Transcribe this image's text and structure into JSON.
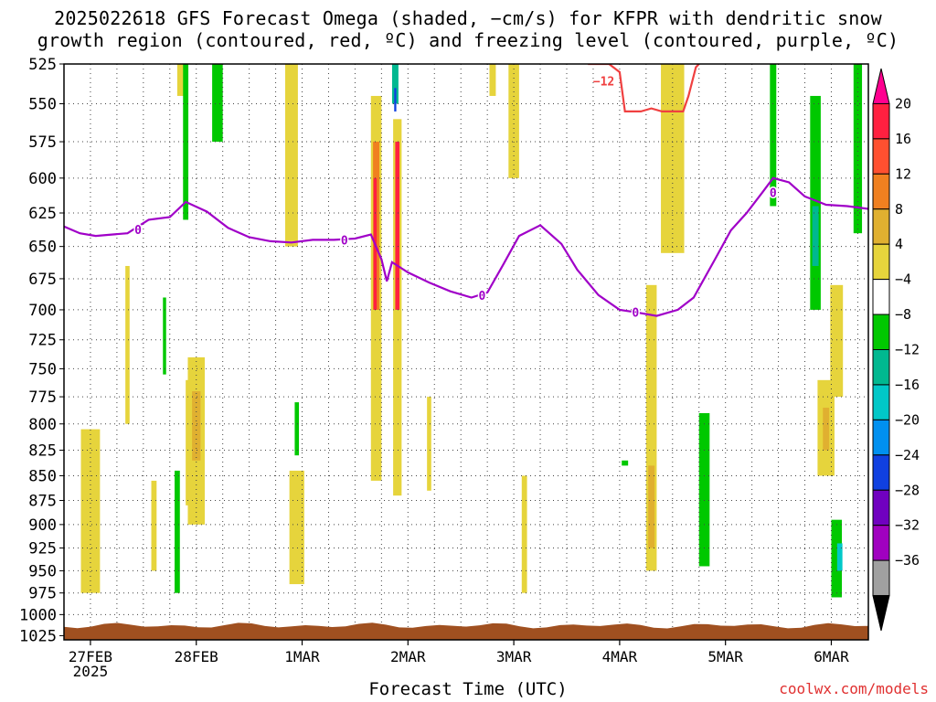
{
  "chart_data": {
    "type": "heatmap",
    "title_line1": "2025022618 GFS Forecast Omega (shaded, −cm/s) for KFPR with dendritic snow",
    "title_line2": "growth region (contoured, red, ºC) and freezing level (contoured, purple, ºC)",
    "xlabel": "Forecast Time (UTC)",
    "credit": "coolwx.com/models",
    "y_axis": {
      "label": "",
      "ticks": [
        525,
        550,
        575,
        600,
        625,
        650,
        675,
        700,
        725,
        750,
        775,
        800,
        825,
        850,
        875,
        900,
        925,
        950,
        975,
        1000,
        1025
      ],
      "range": [
        525,
        1025
      ],
      "scale": "log-pressure"
    },
    "x_axis": {
      "ticks": [
        {
          "day": 0,
          "label": "27FEB",
          "sub": "2025"
        },
        {
          "day": 1,
          "label": "28FEB",
          "sub": ""
        },
        {
          "day": 2,
          "label": "1MAR",
          "sub": ""
        },
        {
          "day": 3,
          "label": "2MAR",
          "sub": ""
        },
        {
          "day": 4,
          "label": "3MAR",
          "sub": ""
        },
        {
          "day": 5,
          "label": "4MAR",
          "sub": ""
        },
        {
          "day": 6,
          "label": "5MAR",
          "sub": ""
        },
        {
          "day": 7,
          "label": "6MAR",
          "sub": ""
        }
      ],
      "range_days": [
        -0.25,
        7.35
      ],
      "grid": true
    },
    "colorbar": {
      "labels": [
        "20",
        "16",
        "12",
        "8",
        "4",
        "−4",
        "−8",
        "−12",
        "−16",
        "−20",
        "−24",
        "−28",
        "−32",
        "−36"
      ],
      "levels": [
        {
          "color": "#ff0090",
          "label": "top"
        },
        {
          "color": "#ff2040"
        },
        {
          "color": "#ff5030"
        },
        {
          "color": "#f08020"
        },
        {
          "color": "#e0b030"
        },
        {
          "color": "#e6d43c"
        },
        {
          "color": "#ffffff"
        },
        {
          "color": "#00c800"
        },
        {
          "color": "#00b890"
        },
        {
          "color": "#00c8c8"
        },
        {
          "color": "#0090f0"
        },
        {
          "color": "#1040e0"
        },
        {
          "color": "#7000c0"
        },
        {
          "color": "#a000c0"
        },
        {
          "color": "#a0a0a0"
        },
        {
          "color": "#000000"
        }
      ]
    },
    "freezing_level_0C": {
      "label": "0",
      "color": "#a000c8",
      "points": [
        [
          -0.25,
          635
        ],
        [
          -0.1,
          640
        ],
        [
          0.05,
          642
        ],
        [
          0.2,
          641
        ],
        [
          0.35,
          640
        ],
        [
          0.55,
          630
        ],
        [
          0.75,
          628
        ],
        [
          0.9,
          617
        ],
        [
          1.1,
          624
        ],
        [
          1.3,
          636
        ],
        [
          1.5,
          643
        ],
        [
          1.7,
          646
        ],
        [
          1.9,
          647
        ],
        [
          2.1,
          645
        ],
        [
          2.3,
          645
        ],
        [
          2.5,
          644
        ],
        [
          2.65,
          641
        ],
        [
          2.75,
          660
        ],
        [
          2.8,
          677
        ],
        [
          2.85,
          662
        ],
        [
          3.0,
          670
        ],
        [
          3.2,
          678
        ],
        [
          3.4,
          685
        ],
        [
          3.6,
          690
        ],
        [
          3.75,
          686
        ],
        [
          3.9,
          664
        ],
        [
          4.05,
          642
        ],
        [
          4.25,
          634
        ],
        [
          4.45,
          648
        ],
        [
          4.6,
          668
        ],
        [
          4.8,
          688
        ],
        [
          5.0,
          700
        ],
        [
          5.15,
          702
        ],
        [
          5.35,
          705
        ],
        [
          5.55,
          700
        ],
        [
          5.7,
          690
        ],
        [
          5.9,
          660
        ],
        [
          6.05,
          638
        ],
        [
          6.2,
          625
        ],
        [
          6.35,
          610
        ],
        [
          6.45,
          600
        ],
        [
          6.6,
          603
        ],
        [
          6.75,
          613
        ],
        [
          6.95,
          619
        ],
        [
          7.15,
          620
        ],
        [
          7.35,
          622
        ]
      ]
    },
    "dendritic_minus12C": {
      "label": "−12",
      "color": "#f04040",
      "points": [
        [
          4.7,
          525
        ],
        [
          4.9,
          525
        ],
        [
          5.0,
          530
        ],
        [
          5.05,
          555
        ],
        [
          5.2,
          555
        ],
        [
          5.3,
          553
        ],
        [
          5.4,
          555
        ],
        [
          5.6,
          555
        ],
        [
          5.65,
          545
        ],
        [
          5.72,
          527
        ],
        [
          5.75,
          525
        ]
      ]
    },
    "omega_cells": [
      {
        "day": 0.0,
        "p_top": 805,
        "p_bot": 975,
        "w": 0.18,
        "color": "#e6d43c"
      },
      {
        "day": 0.35,
        "p_top": 665,
        "p_bot": 800,
        "w": 0.04,
        "color": "#e6d43c"
      },
      {
        "day": 0.6,
        "p_top": 855,
        "p_bot": 950,
        "w": 0.05,
        "color": "#e6d43c"
      },
      {
        "day": 0.85,
        "p_top": 525,
        "p_bot": 545,
        "w": 0.06,
        "color": "#e6d43c"
      },
      {
        "day": 0.95,
        "p_top": 760,
        "p_bot": 880,
        "w": 0.1,
        "color": "#e6d43c"
      },
      {
        "day": 1.0,
        "p_top": 740,
        "p_bot": 900,
        "w": 0.16,
        "color": "#e6d43c"
      },
      {
        "day": 1.0,
        "p_top": 770,
        "p_bot": 835,
        "w": 0.08,
        "color": "#e0b030"
      },
      {
        "day": 0.9,
        "p_top": 525,
        "p_bot": 630,
        "w": 0.05,
        "color": "#00c800"
      },
      {
        "day": 1.2,
        "p_top": 525,
        "p_bot": 575,
        "w": 0.1,
        "color": "#00c800"
      },
      {
        "day": 0.7,
        "p_top": 690,
        "p_bot": 755,
        "w": 0.03,
        "color": "#00c800"
      },
      {
        "day": 0.82,
        "p_top": 845,
        "p_bot": 975,
        "w": 0.05,
        "color": "#00c800"
      },
      {
        "day": 1.9,
        "p_top": 525,
        "p_bot": 650,
        "w": 0.12,
        "color": "#e6d43c"
      },
      {
        "day": 1.95,
        "p_top": 845,
        "p_bot": 965,
        "w": 0.14,
        "color": "#e6d43c"
      },
      {
        "day": 1.95,
        "p_top": 780,
        "p_bot": 830,
        "w": 0.04,
        "color": "#00c800"
      },
      {
        "day": 2.7,
        "p_top": 545,
        "p_bot": 855,
        "w": 0.1,
        "color": "#e6d43c"
      },
      {
        "day": 2.7,
        "p_top": 575,
        "p_bot": 700,
        "w": 0.06,
        "color": "#f08020"
      },
      {
        "day": 2.69,
        "p_top": 600,
        "p_bot": 700,
        "w": 0.03,
        "color": "#ff2040"
      },
      {
        "day": 2.9,
        "p_top": 560,
        "p_bot": 870,
        "w": 0.08,
        "color": "#e6d43c"
      },
      {
        "day": 2.9,
        "p_top": 575,
        "p_bot": 700,
        "w": 0.04,
        "color": "#ff2040"
      },
      {
        "day": 2.88,
        "p_top": 525,
        "p_bot": 550,
        "w": 0.06,
        "color": "#00b890"
      },
      {
        "day": 2.88,
        "p_top": 540,
        "p_bot": 555,
        "w": 0.02,
        "color": "#1040e0"
      },
      {
        "day": 3.2,
        "p_top": 775,
        "p_bot": 865,
        "w": 0.04,
        "color": "#e6d43c"
      },
      {
        "day": 3.8,
        "p_top": 525,
        "p_bot": 545,
        "w": 0.06,
        "color": "#e6d43c"
      },
      {
        "day": 4.0,
        "p_top": 525,
        "p_bot": 600,
        "w": 0.1,
        "color": "#e6d43c"
      },
      {
        "day": 4.1,
        "p_top": 850,
        "p_bot": 975,
        "w": 0.05,
        "color": "#e6d43c"
      },
      {
        "day": 5.3,
        "p_top": 680,
        "p_bot": 950,
        "w": 0.1,
        "color": "#e6d43c"
      },
      {
        "day": 5.3,
        "p_top": 840,
        "p_bot": 925,
        "w": 0.06,
        "color": "#e0b030"
      },
      {
        "day": 5.5,
        "p_top": 525,
        "p_bot": 655,
        "w": 0.22,
        "color": "#e6d43c"
      },
      {
        "day": 5.05,
        "p_top": 835,
        "p_bot": 840,
        "w": 0.06,
        "color": "#00c800"
      },
      {
        "day": 5.8,
        "p_top": 790,
        "p_bot": 945,
        "w": 0.1,
        "color": "#00c800"
      },
      {
        "day": 6.45,
        "p_top": 525,
        "p_bot": 620,
        "w": 0.06,
        "color": "#00c800"
      },
      {
        "day": 6.85,
        "p_top": 545,
        "p_bot": 700,
        "w": 0.1,
        "color": "#00c800"
      },
      {
        "day": 6.85,
        "p_top": 620,
        "p_bot": 665,
        "w": 0.06,
        "color": "#00b890"
      },
      {
        "day": 6.95,
        "p_top": 760,
        "p_bot": 850,
        "w": 0.16,
        "color": "#e6d43c"
      },
      {
        "day": 6.95,
        "p_top": 785,
        "p_bot": 825,
        "w": 0.06,
        "color": "#e0b030"
      },
      {
        "day": 7.05,
        "p_top": 895,
        "p_bot": 980,
        "w": 0.1,
        "color": "#00c800"
      },
      {
        "day": 7.08,
        "p_top": 920,
        "p_bot": 950,
        "w": 0.05,
        "color": "#00c8c8"
      },
      {
        "day": 7.25,
        "p_top": 525,
        "p_bot": 640,
        "w": 0.08,
        "color": "#00c800"
      },
      {
        "day": 7.05,
        "p_top": 680,
        "p_bot": 775,
        "w": 0.12,
        "color": "#e6d43c"
      }
    ]
  }
}
